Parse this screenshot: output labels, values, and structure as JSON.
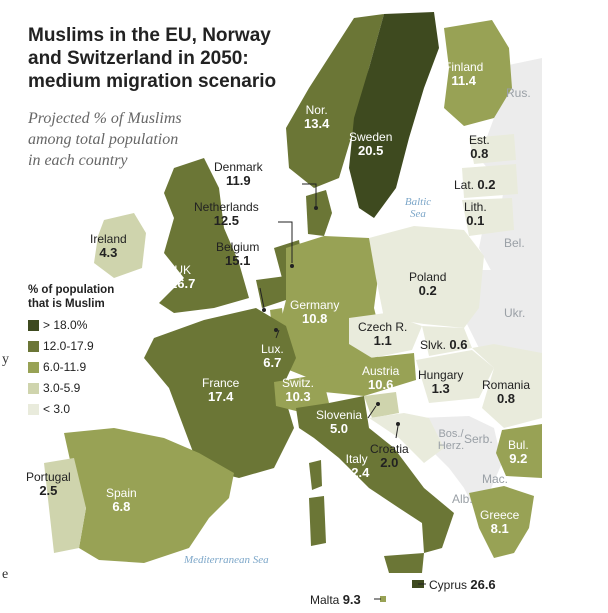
{
  "title": "Muslims in the EU, Norway and Switzerland in 2050: medium migration scenario",
  "title_lines": [
    "Muslims in the EU, Norway",
    "and Switzerland in 2050:",
    "medium migration scenario"
  ],
  "subtitle_lines": [
    "Projected % of Muslims",
    "among total population",
    "in each country"
  ],
  "legend": {
    "title_lines": [
      "% of population",
      "that is Muslim"
    ],
    "items": [
      {
        "label": "> 18.0%",
        "color": "#3e4a1f"
      },
      {
        "label": "12.0-17.9",
        "color": "#6b7636"
      },
      {
        "label": "6.0-11.9",
        "color": "#98a255"
      },
      {
        "label": "3.0-5.9",
        "color": "#cfd4ad"
      },
      {
        "label": "< 3.0",
        "color": "#e9ebdc"
      }
    ]
  },
  "countries": [
    {
      "name": "Finland",
      "value": "11.4"
    },
    {
      "name": "Nor.",
      "value": "13.4"
    },
    {
      "name": "Sweden",
      "value": "20.5"
    },
    {
      "name": "Est.",
      "value": "0.8"
    },
    {
      "name": "Lat.",
      "value": "0.2"
    },
    {
      "name": "Lith.",
      "value": "0.1"
    },
    {
      "name": "Denmark",
      "value": "11.9"
    },
    {
      "name": "Netherlands",
      "value": "12.5"
    },
    {
      "name": "Belgium",
      "value": "15.1"
    },
    {
      "name": "Ireland",
      "value": "4.3"
    },
    {
      "name": "UK",
      "value": "16.7"
    },
    {
      "name": "Poland",
      "value": "0.2"
    },
    {
      "name": "Germany",
      "value": "10.8"
    },
    {
      "name": "Czech R.",
      "value": "1.1"
    },
    {
      "name": "Slvk.",
      "value": "0.6"
    },
    {
      "name": "Lux.",
      "value": "6.7"
    },
    {
      "name": "Austria",
      "value": "10.6"
    },
    {
      "name": "Hungary",
      "value": "1.3"
    },
    {
      "name": "Romania",
      "value": "0.8"
    },
    {
      "name": "France",
      "value": "17.4"
    },
    {
      "name": "Switz.",
      "value": "10.3"
    },
    {
      "name": "Slovenia",
      "value": "5.0"
    },
    {
      "name": "Croatia",
      "value": "2.0"
    },
    {
      "name": "Bul.",
      "value": "9.2"
    },
    {
      "name": "Italy",
      "value": "12.4"
    },
    {
      "name": "Portugal",
      "value": "2.5"
    },
    {
      "name": "Spain",
      "value": "6.8"
    },
    {
      "name": "Greece",
      "value": "8.1"
    },
    {
      "name": "Cyprus",
      "value": "26.6"
    },
    {
      "name": "Malta",
      "value": "9.3"
    }
  ],
  "other_labels": [
    "Rus.",
    "Bel.",
    "Ukr.",
    "Bos./ Herz.",
    "Serb.",
    "Mac.",
    "Alb."
  ],
  "seas": [
    "Baltic Sea",
    "Mediterranean Sea"
  ],
  "edge_fragments": [
    "y",
    "e"
  ]
}
